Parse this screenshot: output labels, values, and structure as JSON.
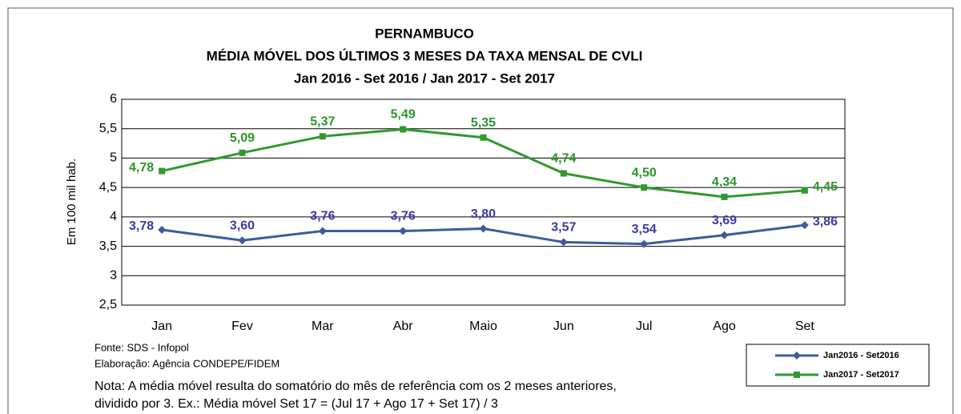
{
  "chart_data": {
    "type": "line",
    "title": "PERNAMBUCO",
    "subtitle": [
      "MÉDIA MÓVEL DOS ÚLTIMOS 3 MESES DA TAXA MENSAL DE CVLI",
      "Jan 2016 - Set 2016 / Jan 2017 - Set 2017"
    ],
    "y_label": "Em 100 mil hab.",
    "categories": [
      "Jan",
      "Fev",
      "Mar",
      "Abr",
      "Maio",
      "Jun",
      "Jul",
      "Ago",
      "Set"
    ],
    "series": [
      {
        "name": "Jan2016 - Set2016",
        "color": "#3d5b9c",
        "label_color": "#3a3aa8",
        "marker": "diamond",
        "values": [
          3.78,
          3.6,
          3.76,
          3.76,
          3.8,
          3.57,
          3.54,
          3.69,
          3.86
        ],
        "value_labels": [
          "3,78",
          "3,60",
          "3,76",
          "3,76",
          "3,80",
          "3,57",
          "3,54",
          "3,69",
          "3,86"
        ]
      },
      {
        "name": "Jan2017 - Set2017",
        "color": "#2f9a2f",
        "label_color": "#2a962a",
        "marker": "square",
        "values": [
          4.78,
          5.09,
          5.37,
          5.49,
          5.35,
          4.74,
          4.5,
          4.34,
          4.45
        ],
        "value_labels": [
          "4,78",
          "5,09",
          "5,37",
          "5,49",
          "5,35",
          "4,74",
          "4,50",
          "4,34",
          "4,45"
        ]
      }
    ],
    "ylim": [
      2.5,
      6
    ],
    "yticks": [
      {
        "value": 2.5,
        "label": "2,5"
      },
      3,
      {
        "value": 3.5,
        "label": "3,5"
      },
      4,
      {
        "value": 4.5,
        "label": "4,5"
      },
      5,
      {
        "value": 5.5,
        "label": "5,5"
      },
      6
    ],
    "grid": true,
    "legend": "lower right",
    "notes": [
      "Fonte: SDS - Infopol",
      "Elaboração: Agência  CONDEPE/FIDEM",
      "Nota: A média móvel resulta do somatório do mês de referência com os 2 meses anteriores,",
      "dividido por 3. Ex.: Média móvel Set 17 = (Jul 17 + Ago 17 + Set 17) / 3"
    ]
  }
}
